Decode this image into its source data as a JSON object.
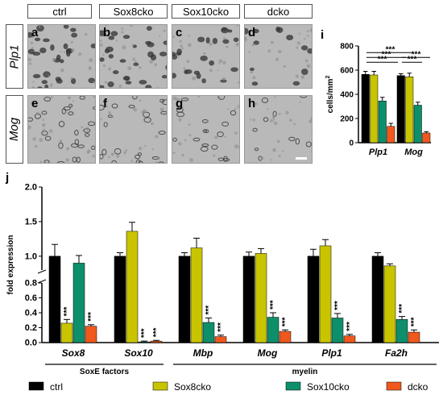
{
  "micrographs": {
    "columns": [
      "ctrl",
      "Sox8cko",
      "Sox10cko",
      "dcko"
    ],
    "rows": [
      "Plp1",
      "Mog"
    ],
    "panel_letters": [
      "a",
      "b",
      "c",
      "d",
      "e",
      "f",
      "g",
      "h"
    ]
  },
  "panel_i_letter": "i",
  "panel_j_letter": "j",
  "colors": {
    "ctrl": "#000000",
    "Sox8cko": "#c8c400",
    "Sox10cko": "#0e8f6b",
    "dcko": "#f0581e"
  },
  "legend": {
    "items": [
      {
        "name": "ctrl",
        "color": "#000000"
      },
      {
        "name": "Sox8cko",
        "color": "#c8c400"
      },
      {
        "name": "Sox10cko",
        "color": "#0e8f6b"
      },
      {
        "name": "dcko",
        "color": "#f0581e"
      }
    ]
  },
  "chart_data": [
    {
      "type": "bar",
      "panel": "i",
      "categories": [
        "Plp1",
        "Mog"
      ],
      "series": [
        {
          "name": "ctrl",
          "values": [
            565,
            555
          ],
          "errors": [
            25,
            15
          ]
        },
        {
          "name": "Sox8cko",
          "values": [
            560,
            545
          ],
          "errors": [
            30,
            30
          ]
        },
        {
          "name": "Sox10cko",
          "values": [
            345,
            310
          ],
          "errors": [
            30,
            25
          ]
        },
        {
          "name": "dcko",
          "values": [
            135,
            80
          ],
          "errors": [
            25,
            10
          ]
        }
      ],
      "ylabel": "cells/mm",
      "ylabel_superscript": "2",
      "ylim": [
        0,
        800
      ],
      "yticks": [
        0,
        200,
        400,
        600,
        800
      ],
      "significance": [
        "***",
        "***",
        "***",
        "***",
        "***"
      ]
    },
    {
      "type": "bar",
      "panel": "j",
      "categories": [
        "Sox8",
        "Sox10",
        "Mbp",
        "Mog",
        "Plp1",
        "Fa2h"
      ],
      "series": [
        {
          "name": "ctrl",
          "values": [
            1.0,
            1.0,
            1.0,
            1.0,
            1.0,
            1.0
          ],
          "errors": [
            0.17,
            0.05,
            0.05,
            0.06,
            0.1,
            0.05
          ]
        },
        {
          "name": "Sox8cko",
          "values": [
            0.26,
            1.36,
            1.12,
            1.04,
            1.15,
            0.86
          ],
          "errors": [
            0.05,
            0.13,
            0.14,
            0.07,
            0.09,
            0.03
          ]
        },
        {
          "name": "Sox10cko",
          "values": [
            0.9,
            0.01,
            0.27,
            0.34,
            0.33,
            0.31
          ],
          "errors": [
            0.11,
            0.01,
            0.06,
            0.06,
            0.06,
            0.04
          ]
        },
        {
          "name": "dcko",
          "values": [
            0.22,
            0.02,
            0.08,
            0.15,
            0.09,
            0.14
          ],
          "errors": [
            0.02,
            0.01,
            0.02,
            0.02,
            0.02,
            0.03
          ]
        }
      ],
      "ylabel": "fold expression",
      "ylim": [
        0,
        2.0
      ],
      "yticks": [
        0.0,
        0.2,
        0.4,
        0.6,
        0.8,
        1.0,
        1.5,
        2.0
      ],
      "axis_break": true,
      "groups": [
        {
          "label": "SoxE factors",
          "categories": [
            "Sox8",
            "Sox10"
          ]
        },
        {
          "label": "myelin",
          "categories": [
            "Mbp",
            "Mog",
            "Plp1",
            "Fa2h"
          ]
        }
      ],
      "significance_label": "***"
    }
  ]
}
